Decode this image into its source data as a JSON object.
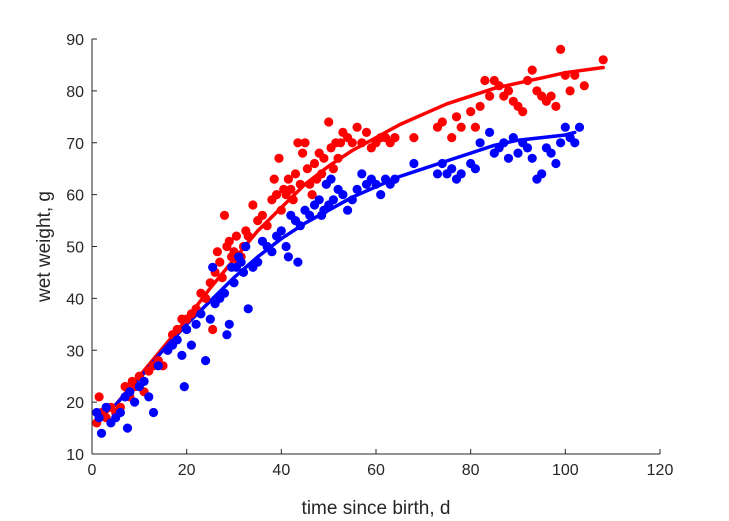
{
  "chart_data": {
    "type": "scatter",
    "xlabel": "time since birth, d",
    "ylabel": "wet weight, g",
    "xlim": [
      0,
      120
    ],
    "ylim": [
      10,
      90
    ],
    "xticks": [
      "0",
      "20",
      "40",
      "60",
      "80",
      "100",
      "120"
    ],
    "yticks": [
      "10",
      "20",
      "30",
      "40",
      "50",
      "60",
      "70",
      "80",
      "90"
    ],
    "grid": false,
    "legend": "none",
    "series": [
      {
        "color": "#ff0000",
        "points": [
          [
            1,
            16
          ],
          [
            1.5,
            21
          ],
          [
            2,
            18
          ],
          [
            3,
            17
          ],
          [
            4,
            19
          ],
          [
            5,
            18
          ],
          [
            6,
            19
          ],
          [
            7,
            23
          ],
          [
            8,
            21
          ],
          [
            8.5,
            24
          ],
          [
            9,
            23
          ],
          [
            10,
            25
          ],
          [
            11,
            22
          ],
          [
            12,
            26
          ],
          [
            13,
            27
          ],
          [
            14,
            28
          ],
          [
            15,
            27
          ],
          [
            16,
            30
          ],
          [
            17,
            33
          ],
          [
            18,
            34
          ],
          [
            19,
            36
          ],
          [
            20,
            36
          ],
          [
            21,
            37
          ],
          [
            22,
            38
          ],
          [
            23,
            41
          ],
          [
            24,
            40
          ],
          [
            25,
            43
          ],
          [
            25.5,
            34
          ],
          [
            26,
            45
          ],
          [
            26.5,
            49
          ],
          [
            27,
            47
          ],
          [
            27.5,
            44
          ],
          [
            28,
            56
          ],
          [
            28.5,
            50
          ],
          [
            29,
            51
          ],
          [
            29.5,
            48
          ],
          [
            30,
            49
          ],
          [
            30.5,
            52
          ],
          [
            31,
            47
          ],
          [
            31.5,
            48
          ],
          [
            32,
            50
          ],
          [
            32.5,
            53
          ],
          [
            33,
            52
          ],
          [
            34,
            58
          ],
          [
            35,
            55
          ],
          [
            36,
            56
          ],
          [
            37,
            54
          ],
          [
            38,
            59
          ],
          [
            38.5,
            63
          ],
          [
            39,
            60
          ],
          [
            39.5,
            67
          ],
          [
            40,
            57
          ],
          [
            40.5,
            61
          ],
          [
            41,
            60
          ],
          [
            41.5,
            63
          ],
          [
            42,
            61
          ],
          [
            42.5,
            59
          ],
          [
            43,
            64
          ],
          [
            43.5,
            70
          ],
          [
            44,
            62
          ],
          [
            44.5,
            68
          ],
          [
            45,
            70
          ],
          [
            45.5,
            65
          ],
          [
            46,
            62
          ],
          [
            46.5,
            60
          ],
          [
            47,
            66
          ],
          [
            47.5,
            63
          ],
          [
            48,
            68
          ],
          [
            48.5,
            64
          ],
          [
            49,
            67
          ],
          [
            49.5,
            62
          ],
          [
            50,
            74
          ],
          [
            50.5,
            69
          ],
          [
            51,
            65
          ],
          [
            51.5,
            70
          ],
          [
            52,
            67
          ],
          [
            52.5,
            70
          ],
          [
            53,
            72
          ],
          [
            54,
            71
          ],
          [
            55,
            70
          ],
          [
            56,
            73
          ],
          [
            57,
            70
          ],
          [
            58,
            72
          ],
          [
            59,
            69
          ],
          [
            60,
            70
          ],
          [
            61,
            71
          ],
          [
            62,
            71
          ],
          [
            63,
            70
          ],
          [
            64,
            71
          ],
          [
            68,
            71
          ],
          [
            73,
            73
          ],
          [
            74,
            74
          ],
          [
            76,
            71
          ],
          [
            77,
            75
          ],
          [
            78,
            73
          ],
          [
            80,
            76
          ],
          [
            81,
            73
          ],
          [
            82,
            77
          ],
          [
            83,
            82
          ],
          [
            84,
            79
          ],
          [
            85,
            82
          ],
          [
            86,
            81
          ],
          [
            87,
            79
          ],
          [
            88,
            80
          ],
          [
            89,
            78
          ],
          [
            90,
            77
          ],
          [
            91,
            76
          ],
          [
            92,
            82
          ],
          [
            93,
            84
          ],
          [
            94,
            80
          ],
          [
            95,
            79
          ],
          [
            96,
            78
          ],
          [
            97,
            79
          ],
          [
            98,
            77
          ],
          [
            99,
            88
          ],
          [
            100,
            83
          ],
          [
            101,
            80
          ],
          [
            102,
            83
          ],
          [
            104,
            81
          ],
          [
            108,
            86
          ]
        ]
      },
      {
        "color": "#0000ff",
        "points": [
          [
            1,
            18
          ],
          [
            1.5,
            17
          ],
          [
            2,
            14
          ],
          [
            3,
            19
          ],
          [
            4,
            16
          ],
          [
            5,
            17
          ],
          [
            6,
            18
          ],
          [
            7,
            21
          ],
          [
            7.5,
            15
          ],
          [
            8,
            22
          ],
          [
            9,
            20
          ],
          [
            10,
            23
          ],
          [
            11,
            24
          ],
          [
            12,
            21
          ],
          [
            13,
            18
          ],
          [
            14,
            27
          ],
          [
            16,
            30
          ],
          [
            17,
            31
          ],
          [
            18,
            32
          ],
          [
            19,
            29
          ],
          [
            19.5,
            23
          ],
          [
            20,
            34
          ],
          [
            21,
            31
          ],
          [
            22,
            35
          ],
          [
            23,
            37
          ],
          [
            24,
            28
          ],
          [
            25,
            36
          ],
          [
            25.5,
            46
          ],
          [
            26,
            39
          ],
          [
            27,
            40
          ],
          [
            28,
            41
          ],
          [
            28.5,
            33
          ],
          [
            29,
            35
          ],
          [
            29.5,
            46
          ],
          [
            30,
            43
          ],
          [
            30.5,
            46
          ],
          [
            31,
            48
          ],
          [
            31.5,
            47
          ],
          [
            32,
            45
          ],
          [
            32.5,
            50
          ],
          [
            33,
            38
          ],
          [
            34,
            46
          ],
          [
            35,
            47
          ],
          [
            36,
            51
          ],
          [
            37,
            50
          ],
          [
            38,
            49
          ],
          [
            39,
            52
          ],
          [
            40,
            53
          ],
          [
            41,
            50
          ],
          [
            41.5,
            48
          ],
          [
            42,
            56
          ],
          [
            43,
            55
          ],
          [
            43.5,
            47
          ],
          [
            44,
            54
          ],
          [
            45,
            57
          ],
          [
            46,
            56
          ],
          [
            47,
            58
          ],
          [
            48,
            59
          ],
          [
            48.5,
            56
          ],
          [
            49,
            57
          ],
          [
            49.5,
            62
          ],
          [
            50,
            58
          ],
          [
            50.5,
            63
          ],
          [
            51,
            59
          ],
          [
            52,
            61
          ],
          [
            53,
            60
          ],
          [
            54,
            57
          ],
          [
            55,
            59
          ],
          [
            56,
            61
          ],
          [
            57,
            64
          ],
          [
            58,
            62
          ],
          [
            59,
            63
          ],
          [
            60,
            62
          ],
          [
            61,
            60
          ],
          [
            62,
            63
          ],
          [
            63,
            62
          ],
          [
            64,
            63
          ],
          [
            68,
            66
          ],
          [
            73,
            64
          ],
          [
            74,
            66
          ],
          [
            75,
            64
          ],
          [
            76,
            65
          ],
          [
            77,
            63
          ],
          [
            78,
            64
          ],
          [
            80,
            66
          ],
          [
            81,
            65
          ],
          [
            82,
            70
          ],
          [
            84,
            72
          ],
          [
            85,
            68
          ],
          [
            86,
            69
          ],
          [
            87,
            70
          ],
          [
            88,
            67
          ],
          [
            89,
            71
          ],
          [
            90,
            68
          ],
          [
            91,
            70
          ],
          [
            92,
            69
          ],
          [
            93,
            67
          ],
          [
            94,
            63
          ],
          [
            95,
            64
          ],
          [
            96,
            69
          ],
          [
            97,
            68
          ],
          [
            98,
            66
          ],
          [
            99,
            70
          ],
          [
            100,
            73
          ],
          [
            101,
            71
          ],
          [
            102,
            70
          ],
          [
            103,
            73
          ]
        ]
      }
    ],
    "fit_lines": [
      {
        "color": "#ff0000",
        "points": [
          [
            1,
            16.5
          ],
          [
            5,
            19.5
          ],
          [
            10,
            25
          ],
          [
            15,
            30.5
          ],
          [
            20,
            36
          ],
          [
            25,
            42
          ],
          [
            30,
            47.5
          ],
          [
            35,
            53
          ],
          [
            40,
            57.5
          ],
          [
            45,
            62
          ],
          [
            50,
            65.5
          ],
          [
            55,
            68.5
          ],
          [
            60,
            71
          ],
          [
            65,
            73.5
          ],
          [
            70,
            75.5
          ],
          [
            75,
            77.5
          ],
          [
            80,
            79
          ],
          [
            85,
            80.5
          ],
          [
            90,
            81.5
          ],
          [
            95,
            82.5
          ],
          [
            100,
            83.5
          ],
          [
            108,
            84.5
          ]
        ]
      },
      {
        "color": "#0000ff",
        "points": [
          [
            1,
            17
          ],
          [
            5,
            19.5
          ],
          [
            10,
            24.5
          ],
          [
            15,
            30
          ],
          [
            20,
            35
          ],
          [
            25,
            39.5
          ],
          [
            30,
            44
          ],
          [
            35,
            48
          ],
          [
            40,
            51.5
          ],
          [
            45,
            54.5
          ],
          [
            50,
            57
          ],
          [
            55,
            59.5
          ],
          [
            60,
            61.5
          ],
          [
            65,
            63.5
          ],
          [
            70,
            65
          ],
          [
            75,
            66.5
          ],
          [
            80,
            68
          ],
          [
            85,
            69.5
          ],
          [
            90,
            70.5
          ],
          [
            95,
            71
          ],
          [
            100,
            71.5
          ],
          [
            102,
            72
          ]
        ]
      }
    ]
  }
}
